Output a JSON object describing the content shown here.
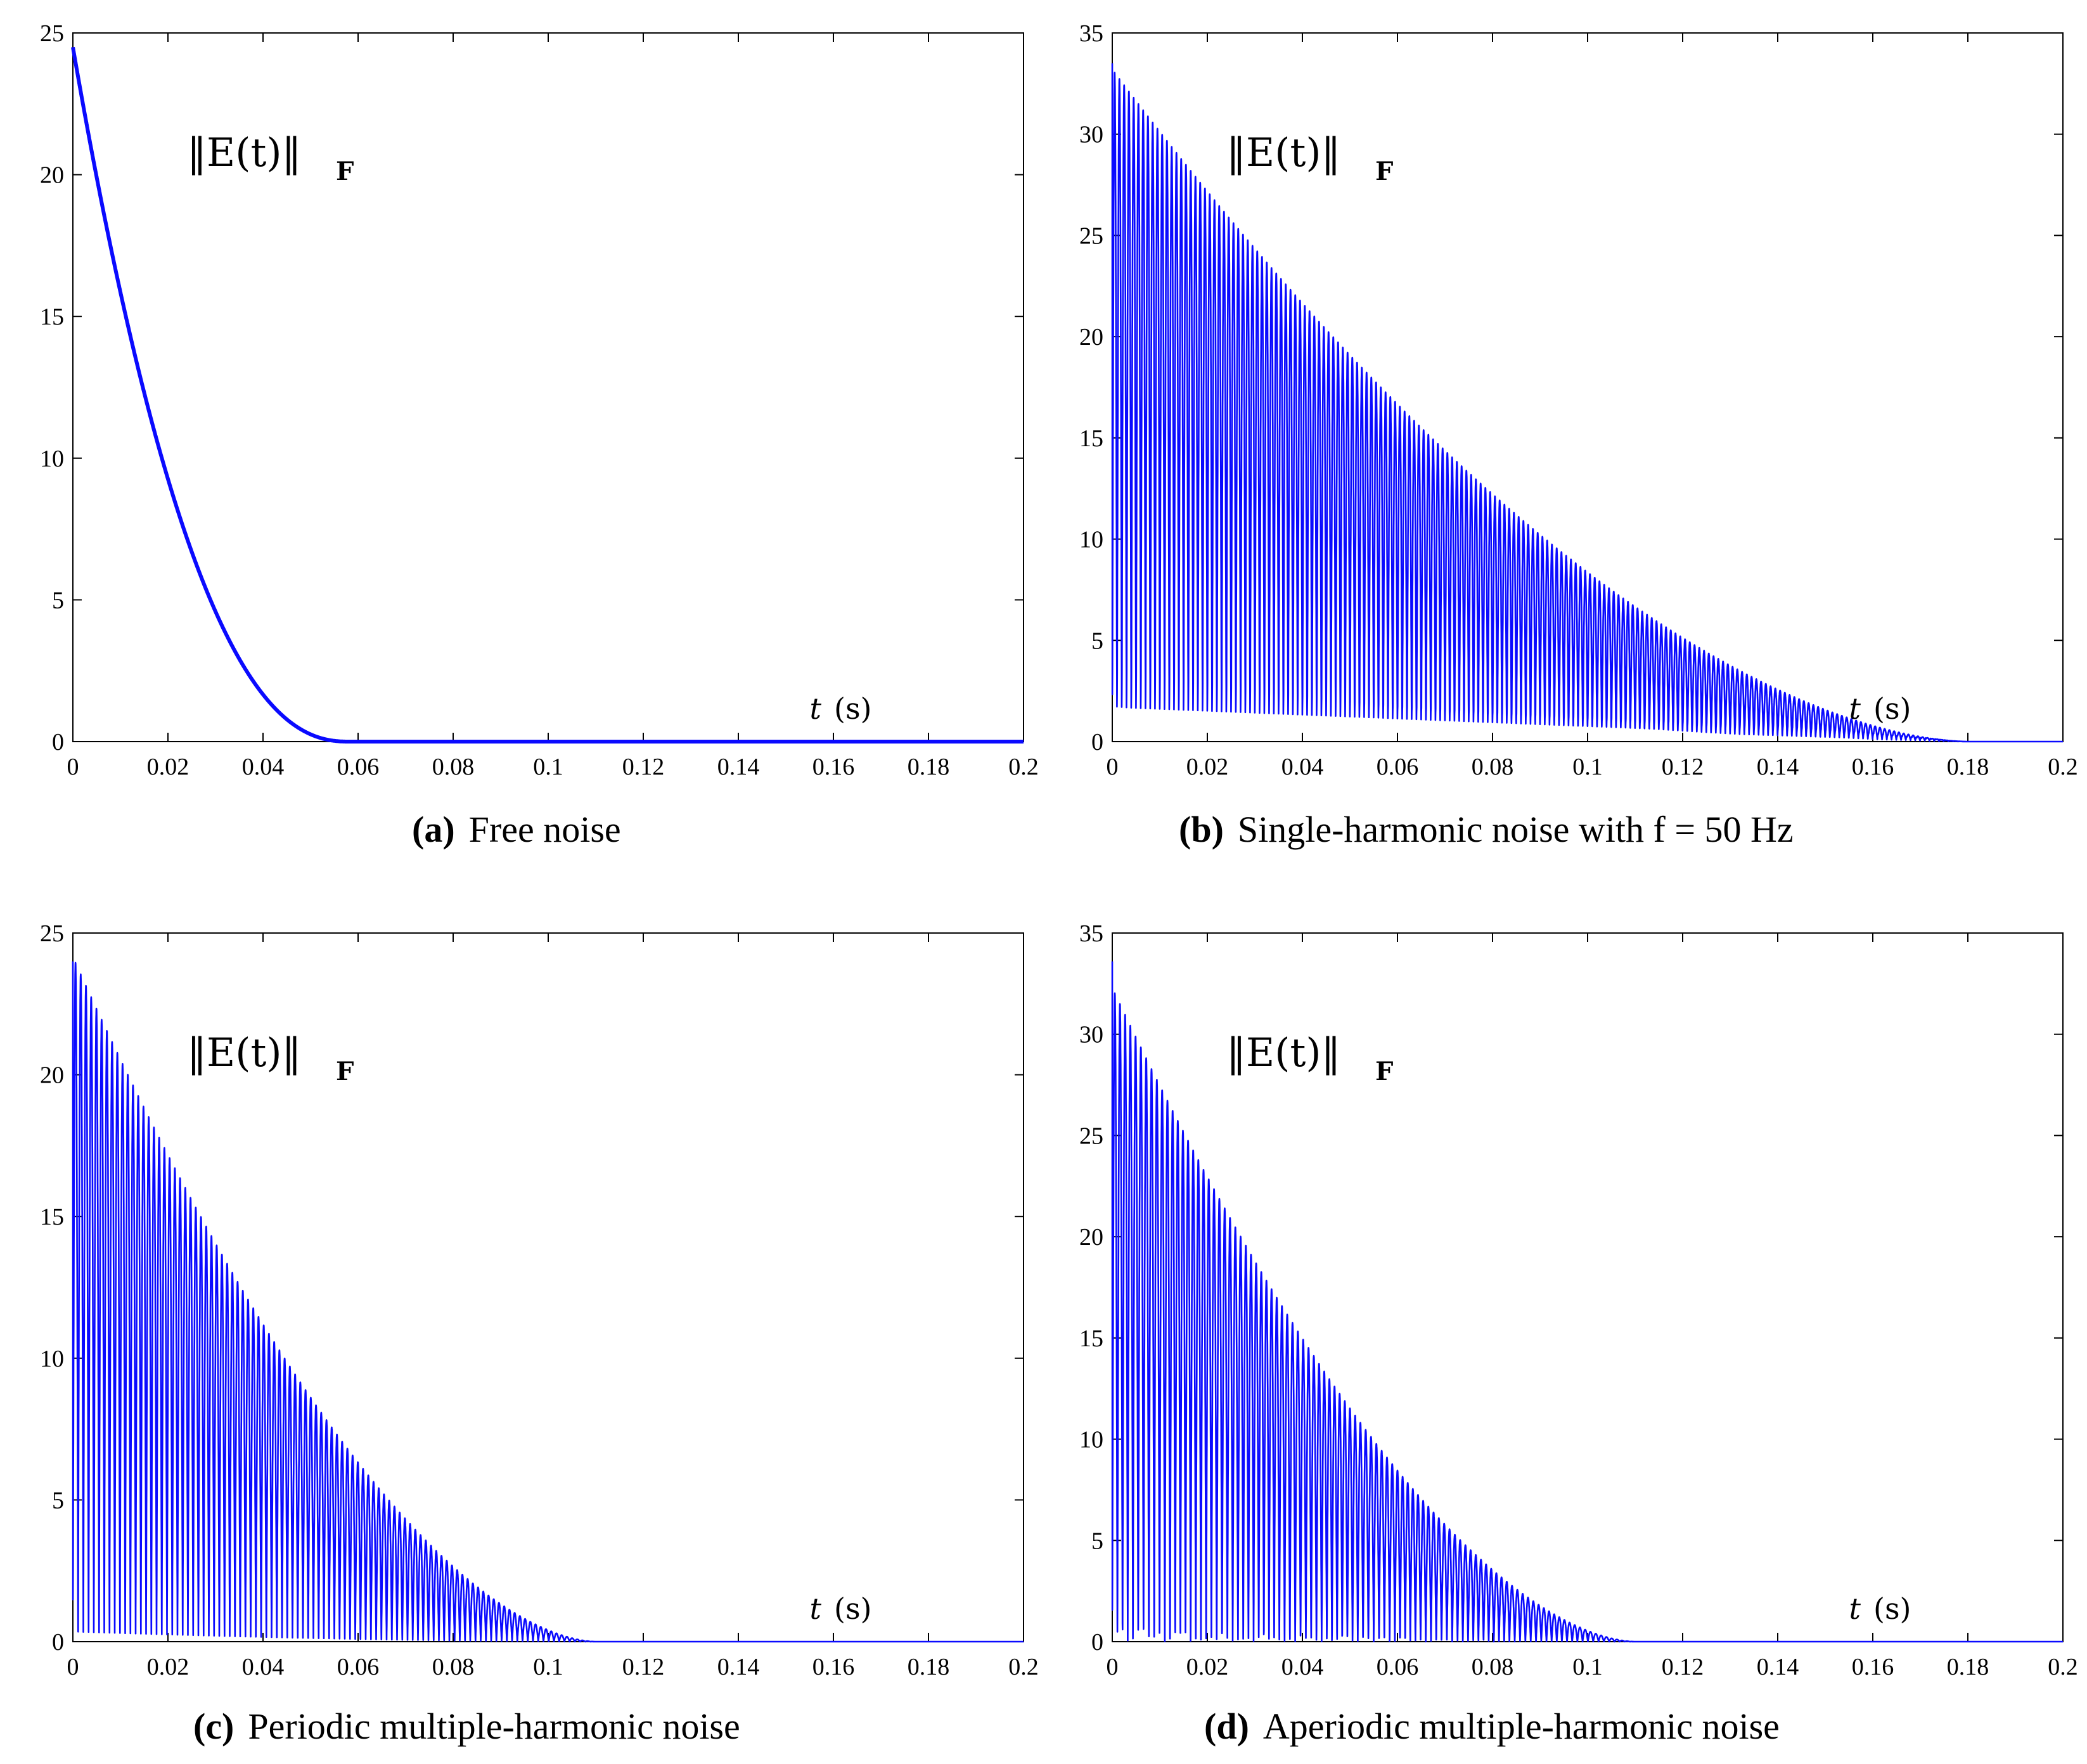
{
  "colors": {
    "line": "#0a0aff",
    "axis": "#000000",
    "background": "#ffffff"
  },
  "chart_data": [
    {
      "id": "a",
      "type": "line",
      "signal": "free",
      "title": "",
      "annotation": "‖E(t)‖",
      "annotation_sub": "F",
      "xlabel_t": "t",
      "xlabel_unit": "(s)",
      "xlim": [
        0,
        0.2
      ],
      "ylim": [
        0,
        25
      ],
      "xticks": [
        0,
        0.02,
        0.04,
        0.06,
        0.08,
        0.1,
        0.12,
        0.14,
        0.16,
        0.18,
        0.2
      ],
      "xtick_labels": [
        "0",
        "0.02",
        "0.04",
        "0.06",
        "0.08",
        "0.1",
        "0.12",
        "0.14",
        "0.16",
        "0.18",
        "0.2"
      ],
      "yticks": [
        0,
        5,
        10,
        15,
        20,
        25
      ],
      "ytick_labels": [
        "0",
        "5",
        "10",
        "15",
        "20",
        "25"
      ],
      "series": [
        {
          "name": "Frobenius norm of E(t)",
          "initial": 24.5,
          "zero_time": 0.058
        }
      ],
      "caption_letter": "(a)",
      "caption_text": "Free noise"
    },
    {
      "id": "b",
      "type": "line",
      "signal": "single-harmonic",
      "title": "",
      "annotation": "‖E(t)‖",
      "annotation_sub": "F",
      "xlabel_t": "t",
      "xlabel_unit": "(s)",
      "xlim": [
        0,
        0.2
      ],
      "ylim": [
        0,
        35
      ],
      "xticks": [
        0,
        0.02,
        0.04,
        0.06,
        0.08,
        0.1,
        0.12,
        0.14,
        0.16,
        0.18,
        0.2
      ],
      "xtick_labels": [
        "0",
        "0.02",
        "0.04",
        "0.06",
        "0.08",
        "0.1",
        "0.12",
        "0.14",
        "0.16",
        "0.18",
        "0.2"
      ],
      "yticks": [
        0,
        5,
        10,
        15,
        20,
        25,
        30,
        35
      ],
      "ytick_labels": [
        "0",
        "5",
        "10",
        "15",
        "20",
        "25",
        "30",
        "35"
      ],
      "series": [
        {
          "name": "Frobenius norm of E(t)",
          "initial": 33.5,
          "peak": 31.2,
          "oscillation_period": 0.002,
          "secondary_level": 3.6,
          "zero_time": 0.18
        }
      ],
      "caption_letter": "(b)",
      "caption_text": "Single-harmonic noise with f = 50 Hz"
    },
    {
      "id": "c",
      "type": "line",
      "signal": "periodic-multi",
      "title": "",
      "annotation": "‖E(t)‖",
      "annotation_sub": "F",
      "xlabel_t": "t",
      "xlabel_unit": "(s)",
      "xlim": [
        0,
        0.2
      ],
      "ylim": [
        0,
        25
      ],
      "xticks": [
        0,
        0.02,
        0.04,
        0.06,
        0.08,
        0.1,
        0.12,
        0.14,
        0.16,
        0.18,
        0.2
      ],
      "xtick_labels": [
        "0",
        "0.02",
        "0.04",
        "0.06",
        "0.08",
        "0.1",
        "0.12",
        "0.14",
        "0.16",
        "0.18",
        "0.2"
      ],
      "yticks": [
        0,
        5,
        10,
        15,
        20,
        25
      ],
      "ytick_labels": [
        "0",
        "5",
        "10",
        "15",
        "20",
        "25"
      ],
      "series": [
        {
          "name": "Frobenius norm of E(t)",
          "initial": 24.0,
          "peak": 22.2,
          "oscillation_period": 0.0022,
          "zero_time": 0.11
        }
      ],
      "caption_letter": "(c)",
      "caption_text": "Periodic multiple-harmonic noise"
    },
    {
      "id": "d",
      "type": "line",
      "signal": "aperiodic-multi",
      "title": "",
      "annotation": "‖E(t)‖",
      "annotation_sub": "F",
      "xlabel_t": "t",
      "xlabel_unit": "(s)",
      "xlim": [
        0,
        0.2
      ],
      "ylim": [
        0,
        35
      ],
      "xticks": [
        0,
        0.02,
        0.04,
        0.06,
        0.08,
        0.1,
        0.12,
        0.14,
        0.16,
        0.18,
        0.2
      ],
      "xtick_labels": [
        "0",
        "0.02",
        "0.04",
        "0.06",
        "0.08",
        "0.1",
        "0.12",
        "0.14",
        "0.16",
        "0.18",
        "0.2"
      ],
      "yticks": [
        0,
        5,
        10,
        15,
        20,
        25,
        30,
        35
      ],
      "ytick_labels": [
        "0",
        "5",
        "10",
        "15",
        "20",
        "25",
        "30",
        "35"
      ],
      "series": [
        {
          "name": "Frobenius norm of E(t)",
          "initial": 33.6,
          "peak": 30.1,
          "oscillation_period": 0.0022,
          "zero_time": 0.11
        }
      ],
      "caption_letter": "(d)",
      "caption_text": "Aperiodic multiple-harmonic noise"
    }
  ]
}
